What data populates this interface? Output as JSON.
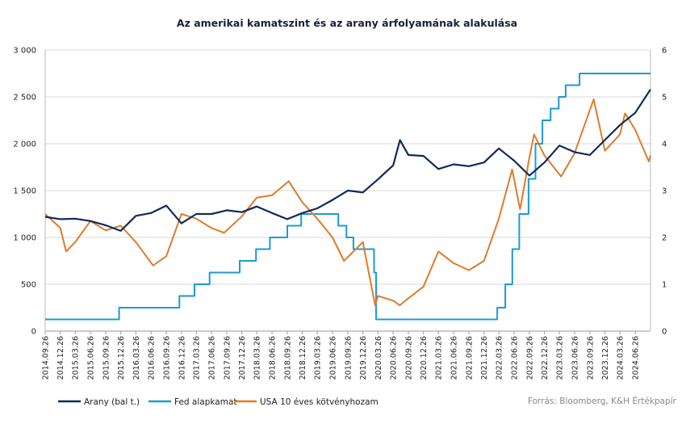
{
  "chart_data": {
    "type": "line",
    "title": "Az amerikai kamatszint és az arany árfolyamának alakulása",
    "source": "Forrás: Bloomberg, K&H Értékpapír",
    "colors": {
      "gold": "#0f2a5c",
      "fed": "#1b9ad6",
      "bond": "#e07b2a",
      "grid": "#d9d9d9"
    },
    "ylim_left": [
      0,
      3000
    ],
    "ylim_right": [
      0,
      6
    ],
    "y_left_ticks": [
      "0",
      "500",
      "1 000",
      "1 500",
      "2 000",
      "2 500",
      "3 000"
    ],
    "y_left_values": [
      0,
      500,
      1000,
      1500,
      2000,
      2500,
      3000
    ],
    "y_right_ticks": [
      "0",
      "1",
      "2",
      "3",
      "4",
      "5",
      "6"
    ],
    "y_right_values": [
      0,
      1,
      2,
      3,
      4,
      5,
      6
    ],
    "x_start": "2014.09.26",
    "x_end": "2024.09.26",
    "x_ticks": [
      "2014.09.26",
      "2014.12.26",
      "2015.03.26",
      "2015.06.26",
      "2015.09.26",
      "2015.12.26",
      "2016.03.26",
      "2016.06.26",
      "2016.09.26",
      "2016.12.26",
      "2017.03.26",
      "2017.06.26",
      "2017.09.26",
      "2017.12.26",
      "2018.03.26",
      "2018.06.26",
      "2018.09.26",
      "2018.12.26",
      "2019.03.26",
      "2019.06.26",
      "2019.09.26",
      "2019.12.26",
      "2020.03.26",
      "2020.06.26",
      "2020.09.26",
      "2020.12.26",
      "2021.03.26",
      "2021.06.26",
      "2021.09.26",
      "2021.12.26",
      "2022.03.26",
      "2022.06.26",
      "2022.09.26",
      "2022.12.26",
      "2023.03.26",
      "2023.06.26",
      "2023.09.26",
      "2023.12.26",
      "2024.03.26",
      "2024.06.26"
    ],
    "series": [
      {
        "name": "Arany (bal t.)",
        "axis": "left",
        "x": [
          "2014.09.26",
          "2014.12.26",
          "2015.03.26",
          "2015.06.26",
          "2015.09.26",
          "2015.12.26",
          "2016.03.26",
          "2016.06.26",
          "2016.09.26",
          "2016.12.26",
          "2017.03.26",
          "2017.06.26",
          "2017.09.26",
          "2017.12.26",
          "2018.03.26",
          "2018.06.26",
          "2018.09.26",
          "2018.12.26",
          "2019.03.26",
          "2019.06.26",
          "2019.09.26",
          "2019.12.26",
          "2020.03.26",
          "2020.06.26",
          "2020.08.06",
          "2020.09.26",
          "2020.12.26",
          "2021.03.26",
          "2021.06.26",
          "2021.09.26",
          "2021.12.26",
          "2022.03.26",
          "2022.06.26",
          "2022.09.26",
          "2022.12.26",
          "2023.03.26",
          "2023.06.26",
          "2023.09.26",
          "2023.12.26",
          "2024.03.26",
          "2024.06.26",
          "2024.09.26"
        ],
        "values": [
          1220,
          1195,
          1200,
          1175,
          1130,
          1070,
          1230,
          1260,
          1340,
          1150,
          1250,
          1250,
          1290,
          1270,
          1330,
          1260,
          1195,
          1260,
          1310,
          1400,
          1500,
          1480,
          1620,
          1770,
          2040,
          1880,
          1870,
          1730,
          1780,
          1760,
          1800,
          1950,
          1820,
          1660,
          1800,
          1980,
          1910,
          1880,
          2040,
          2200,
          2330,
          2580
        ]
      },
      {
        "name": "Fed alapkamat",
        "axis": "right",
        "x": [
          "2014.09.26",
          "2015.12.16",
          "2016.12.14",
          "2017.03.15",
          "2017.06.14",
          "2017.12.13",
          "2018.03.21",
          "2018.06.13",
          "2018.09.26",
          "2018.12.19",
          "2019.07.31",
          "2019.09.18",
          "2019.10.30",
          "2020.03.03",
          "2020.03.15",
          "2022.03.16",
          "2022.05.04",
          "2022.06.15",
          "2022.07.27",
          "2022.09.21",
          "2022.11.02",
          "2022.12.14",
          "2023.02.01",
          "2023.03.22",
          "2023.05.03",
          "2023.07.26",
          "2024.09.18",
          "2024.09.26"
        ],
        "values": [
          0.25,
          0.5,
          0.75,
          1.0,
          1.25,
          1.5,
          1.75,
          2.0,
          2.25,
          2.5,
          2.25,
          2.0,
          1.75,
          1.25,
          0.25,
          0.5,
          1.0,
          1.75,
          2.5,
          3.25,
          4.0,
          4.5,
          4.75,
          5.0,
          5.25,
          5.5,
          5.5,
          5.5
        ]
      },
      {
        "name": "USA 10 éves kötvényhozam",
        "axis": "right",
        "x": [
          "2014.09.26",
          "2014.12.26",
          "2015.01.30",
          "2015.03.26",
          "2015.06.26",
          "2015.09.26",
          "2015.12.26",
          "2016.03.26",
          "2016.07.08",
          "2016.09.26",
          "2016.12.26",
          "2017.03.26",
          "2017.06.26",
          "2017.09.10",
          "2017.12.26",
          "2018.03.26",
          "2018.06.26",
          "2018.10.05",
          "2018.12.26",
          "2019.03.26",
          "2019.06.26",
          "2019.09.03",
          "2019.12.26",
          "2020.03.09",
          "2020.03.26",
          "2020.06.26",
          "2020.08.04",
          "2020.09.26",
          "2020.12.26",
          "2021.03.26",
          "2021.06.26",
          "2021.09.26",
          "2021.12.26",
          "2022.03.26",
          "2022.06.14",
          "2022.08.01",
          "2022.09.26",
          "2022.10.24",
          "2022.12.26",
          "2023.04.06",
          "2023.06.26",
          "2023.10.19",
          "2023.12.26",
          "2024.03.26",
          "2024.04.25",
          "2024.06.26",
          "2024.09.16",
          "2024.09.26"
        ],
        "values": [
          2.5,
          2.2,
          1.7,
          1.9,
          2.35,
          2.15,
          2.25,
          1.9,
          1.4,
          1.6,
          2.5,
          2.4,
          2.2,
          2.1,
          2.45,
          2.85,
          2.9,
          3.2,
          2.75,
          2.4,
          2.0,
          1.5,
          1.9,
          0.55,
          0.75,
          0.65,
          0.55,
          0.7,
          0.95,
          1.7,
          1.45,
          1.3,
          1.5,
          2.4,
          3.45,
          2.6,
          3.7,
          4.2,
          3.75,
          3.3,
          3.8,
          4.95,
          3.85,
          4.2,
          4.65,
          4.3,
          3.62,
          3.75
        ]
      }
    ]
  }
}
